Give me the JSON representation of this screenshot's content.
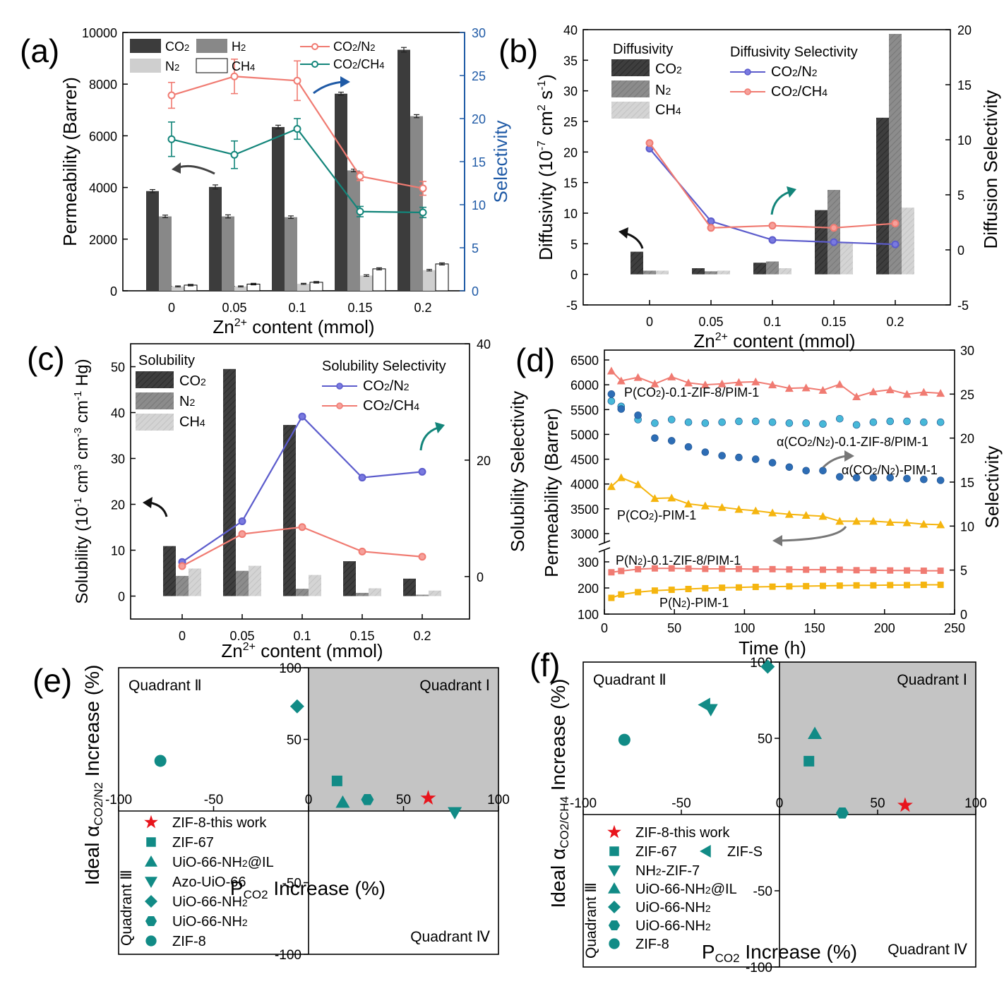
{
  "colors": {
    "co2_bar": "#3c3c3c",
    "h2_bar": "#888888",
    "n2_bar": "#cfcfcf",
    "ch4_bar": "#ffffff",
    "n2_bar_b": "#8a8a8a",
    "ch4_bar_b": "#d2d2d2",
    "salmon": "#f07b72",
    "teal": "#13857a",
    "blue_axis": "#1f5aa6",
    "purple": "#5c5ccc",
    "yellow": "#f5b50f",
    "light_blue": "#47b8d8",
    "dark_blue": "#2d6db5",
    "quad_fill": "#c4c4c4",
    "red_star": "#e8141c",
    "teal_marker": "#118b86"
  },
  "panels": {
    "a": {
      "letter": "(a)",
      "ylabel": "Permeability (Barrer)",
      "y2label": "Selectivity",
      "xlabel": "Zn$^{2+}$ content (mmol)",
      "xlabel_main": "Zn",
      "xlabel_sup": "2+",
      "xlabel_rest": " content (mmol)"
    },
    "b": {
      "letter": "(b)",
      "ylabel": "Diffusivity (10-7 cm2 s-1)",
      "y2label": "Diffusion Selectivity",
      "xlabel_main": "Zn",
      "xlabel_sup": "2+",
      "xlabel_rest": " content (mmol)",
      "legend_title_left": "Diffusivity",
      "legend_title_right": "Diffusivity Selectivity"
    },
    "c": {
      "letter": "(c)",
      "y2label": "Solubility Selectivity",
      "xlabel_main": "Zn",
      "xlabel_sup": "2+",
      "xlabel_rest": " content (mmol)",
      "legend_title_left": "Solubility",
      "legend_title_right": "Solubility Selectivity"
    },
    "d": {
      "letter": "(d)",
      "ylabel": "Permeability (Barrer)",
      "y2label": "Selectivity",
      "xlabel": "Time (h)"
    },
    "e": {
      "letter": "(e)",
      "xlabel": "PCO2 Increase (%)"
    },
    "f": {
      "letter": "(f)",
      "xlabel": "PCO2 Increase (%)"
    }
  },
  "chart_data": [
    {
      "panel": "a",
      "type": "bar",
      "categories": [
        "0",
        "0.05",
        "0.1",
        "0.15",
        "0.2"
      ],
      "ylim": [
        0,
        10000
      ],
      "y2lim": [
        0,
        30
      ],
      "yticks": [
        "0",
        "2000",
        "4000",
        "6000",
        "8000",
        "10000"
      ],
      "y2ticks": [
        "0",
        "5",
        "10",
        "15",
        "20",
        "25",
        "30"
      ],
      "series": [
        {
          "name": "CO2",
          "values": [
            3860,
            4020,
            6340,
            7630,
            9330
          ],
          "err": [
            60,
            80,
            70,
            60,
            90
          ]
        },
        {
          "name": "H2",
          "values": [
            2880,
            2880,
            2850,
            4660,
            6760
          ],
          "err": [
            50,
            60,
            50,
            50,
            60
          ]
        },
        {
          "name": "N2",
          "values": [
            170,
            170,
            270,
            590,
            800
          ],
          "err": [
            20,
            20,
            20,
            30,
            30
          ]
        },
        {
          "name": "CH4",
          "values": [
            220,
            260,
            330,
            850,
            1040
          ],
          "err": [
            30,
            30,
            30,
            40,
            40
          ]
        }
      ],
      "lines": [
        {
          "name": "CO2/N2",
          "values": [
            22.7,
            24.9,
            24.4,
            13.3,
            11.9
          ],
          "err": [
            1.5,
            2.0,
            2.3,
            0.5,
            0.8
          ]
        },
        {
          "name": "CO2/CH4",
          "values": [
            17.6,
            15.8,
            18.8,
            9.2,
            9.1
          ],
          "err": [
            2.0,
            1.6,
            1.2,
            0.6,
            0.6
          ]
        }
      ]
    },
    {
      "panel": "b",
      "type": "bar",
      "categories": [
        "0",
        "0.05",
        "0.1",
        "0.15",
        "0.2"
      ],
      "ylim": [
        -5,
        40
      ],
      "y2lim": [
        -5,
        20
      ],
      "yticks": [
        "-5",
        "0",
        "5",
        "10",
        "15",
        "20",
        "25",
        "30",
        "35",
        "40"
      ],
      "y2ticks": [
        "-5",
        "0",
        "5",
        "10",
        "15",
        "20"
      ],
      "series": [
        {
          "name": "CO2",
          "values": [
            3.7,
            1.0,
            1.9,
            10.5,
            25.6
          ]
        },
        {
          "name": "N2",
          "values": [
            0.6,
            0.5,
            2.1,
            13.8,
            39.3
          ]
        },
        {
          "name": "CH4",
          "values": [
            0.6,
            0.6,
            1.0,
            5.3,
            10.9
          ]
        }
      ],
      "lines": [
        {
          "name": "CO2/N2",
          "values": [
            9.2,
            2.6,
            0.9,
            0.7,
            0.5
          ]
        },
        {
          "name": "CO2/CH4",
          "values": [
            9.7,
            2.0,
            2.2,
            2.0,
            2.4
          ]
        }
      ]
    },
    {
      "panel": "c",
      "type": "bar",
      "categories": [
        "0",
        "0.05",
        "0.1",
        "0.15",
        "0.2"
      ],
      "ylim": [
        -5,
        55
      ],
      "y2lim": [
        -7.3,
        40
      ],
      "yticks": [
        "0",
        "10",
        "20",
        "30",
        "40",
        "50"
      ],
      "y2ticks": [
        "0",
        "20",
        "40"
      ],
      "series": [
        {
          "name": "CO2",
          "values": [
            10.9,
            49.5,
            37.3,
            7.6,
            3.8
          ]
        },
        {
          "name": "N2",
          "values": [
            4.4,
            5.5,
            1.6,
            0.7,
            0.3
          ]
        },
        {
          "name": "CH4",
          "values": [
            6.0,
            6.6,
            4.6,
            1.7,
            1.2
          ]
        }
      ],
      "lines": [
        {
          "name": "CO2/N2",
          "values": [
            2.5,
            9.5,
            27.5,
            17.0,
            18.0
          ]
        },
        {
          "name": "CO2/CH4",
          "values": [
            1.8,
            7.3,
            8.5,
            4.3,
            3.4
          ]
        }
      ]
    },
    {
      "panel": "d",
      "type": "line",
      "xlim": [
        0,
        250
      ],
      "xticks": [
        "0",
        "50",
        "100",
        "150",
        "200",
        "250"
      ],
      "yticks_top": [
        "3000",
        "3500",
        "4000",
        "4500",
        "5000",
        "5500",
        "6000",
        "6500"
      ],
      "yticks_bottom": [
        "100",
        "200",
        "300"
      ],
      "y2ticks": [
        "0",
        "5",
        "10",
        "15",
        "20",
        "25",
        "30"
      ],
      "series": [
        {
          "name": "P(CO2)-0.1-ZIF-8/PIM-1",
          "axis": "perm",
          "x": [
            5,
            12,
            24,
            36,
            48,
            60,
            72,
            84,
            96,
            108,
            120,
            132,
            144,
            156,
            168,
            180,
            192,
            204,
            216,
            228,
            240
          ],
          "y": [
            6280,
            6080,
            6150,
            6020,
            6160,
            6040,
            6000,
            6020,
            6050,
            6060,
            6000,
            5930,
            5940,
            5890,
            6010,
            5760,
            5860,
            5900,
            5810,
            5850,
            5830
          ]
        },
        {
          "name": "α(CO2/N2)-0.1-ZIF-8/PIM-1",
          "axis": "sel",
          "x": [
            5,
            12,
            24,
            36,
            48,
            60,
            72,
            84,
            96,
            108,
            120,
            132,
            144,
            156,
            168,
            180,
            192,
            204,
            216,
            228,
            240
          ],
          "y": [
            24.2,
            23.6,
            22.1,
            21.7,
            22.1,
            21.8,
            21.7,
            21.8,
            21.9,
            21.9,
            21.8,
            21.7,
            21.7,
            21.6,
            22.2,
            21.5,
            21.8,
            21.9,
            21.9,
            21.8,
            21.8
          ]
        },
        {
          "name": "α(CO2/N2)-PIM-1",
          "axis": "sel",
          "x": [
            5,
            12,
            24,
            36,
            48,
            60,
            72,
            84,
            96,
            108,
            120,
            132,
            144,
            156,
            168,
            180,
            192,
            204,
            216,
            228,
            240
          ],
          "y": [
            25.0,
            23.3,
            22.6,
            20.0,
            19.7,
            19.0,
            18.4,
            18.0,
            17.8,
            17.6,
            17.2,
            16.7,
            16.3,
            16.3,
            15.6,
            15.5,
            15.5,
            15.5,
            15.4,
            15.3,
            15.2
          ]
        },
        {
          "name": "P(CO2)-PIM-1",
          "axis": "perm",
          "x": [
            5,
            12,
            24,
            36,
            48,
            60,
            72,
            84,
            96,
            108,
            120,
            132,
            144,
            156,
            168,
            180,
            192,
            204,
            216,
            228,
            240
          ],
          "y": [
            3950,
            4130,
            3990,
            3710,
            3720,
            3600,
            3560,
            3530,
            3490,
            3460,
            3420,
            3390,
            3370,
            3350,
            3250,
            3250,
            3250,
            3230,
            3220,
            3190,
            3180
          ]
        },
        {
          "name": "P(N2)-0.1-ZIF-8/PIM-1",
          "axis": "perm",
          "x": [
            5,
            12,
            24,
            36,
            48,
            60,
            72,
            84,
            96,
            108,
            120,
            132,
            144,
            156,
            168,
            180,
            192,
            204,
            216,
            228,
            240
          ],
          "y": [
            260,
            265,
            272,
            275,
            275,
            274,
            273,
            273,
            273,
            272,
            272,
            271,
            270,
            270,
            270,
            268,
            268,
            267,
            267,
            266,
            266
          ]
        },
        {
          "name": "P(N2)-PIM-1",
          "axis": "perm",
          "x": [
            5,
            12,
            24,
            36,
            48,
            60,
            72,
            84,
            96,
            108,
            120,
            132,
            144,
            156,
            168,
            180,
            192,
            204,
            216,
            228,
            240
          ],
          "y": [
            162,
            175,
            184,
            190,
            193,
            196,
            199,
            201,
            202,
            204,
            205,
            206,
            207,
            208,
            209,
            210,
            210,
            211,
            211,
            212,
            212
          ]
        }
      ]
    },
    {
      "panel": "e",
      "type": "scatter",
      "xlim": [
        -100,
        100
      ],
      "ylim": [
        -100,
        100
      ],
      "xticks": [
        "-100",
        "-50",
        "0",
        "50",
        "100"
      ],
      "yticks": [
        "100",
        "50",
        "0",
        "-50",
        "-100"
      ],
      "quadrants": {
        "q1": "Quadrant Ⅰ",
        "q2": "Quadrant Ⅱ",
        "q3": "Quadrant Ⅲ",
        "q4": "Quadrant Ⅳ"
      },
      "points": [
        {
          "name": "ZIF-8-this work",
          "marker": "star",
          "x": 63,
          "y": 9
        },
        {
          "name": "ZIF-67",
          "marker": "square",
          "x": 15,
          "y": 21
        },
        {
          "name": "UiO-66-NH2@IL",
          "marker": "tri-up",
          "x": 18,
          "y": 6
        },
        {
          "name": "Azo-UiO-66",
          "marker": "tri-down",
          "x": 77,
          "y": -1
        },
        {
          "name": "UiO-66-NH2",
          "marker": "diamond",
          "x": -6,
          "y": 73
        },
        {
          "name": "UiO-66-NH2",
          "marker": "hexagon",
          "x": 31,
          "y": 8
        },
        {
          "name": "ZIF-8",
          "marker": "circle",
          "x": -78,
          "y": 35
        }
      ]
    },
    {
      "panel": "f",
      "type": "scatter",
      "xlim": [
        -100,
        100
      ],
      "ylim": [
        -100,
        100
      ],
      "xticks": [
        "-100",
        "-50",
        "0",
        "50",
        "100"
      ],
      "yticks": [
        "100",
        "50",
        "0",
        "-50",
        "-100"
      ],
      "quadrants": {
        "q1": "Quadrant Ⅰ",
        "q2": "Quadrant Ⅱ",
        "q3": "Quadrant Ⅲ",
        "q4": "Quadrant Ⅳ"
      },
      "points": [
        {
          "name": "ZIF-8-this work",
          "marker": "star",
          "x": 64,
          "y": 6
        },
        {
          "name": "ZIF-67",
          "marker": "square",
          "x": 15,
          "y": 35
        },
        {
          "name": "ZIF-S",
          "marker": "tri-left",
          "x": -38,
          "y": 72
        },
        {
          "name": "NH2-ZIF-7",
          "marker": "tri-down",
          "x": -35,
          "y": 69
        },
        {
          "name": "UiO-66-NH2@IL",
          "marker": "tri-up",
          "x": 18,
          "y": 53
        },
        {
          "name": "UiO-66-NH2",
          "marker": "diamond",
          "x": -6,
          "y": 97
        },
        {
          "name": "UiO-66-NH2",
          "marker": "hexagon",
          "x": 32,
          "y": 1
        },
        {
          "name": "ZIF-8",
          "marker": "circle",
          "x": -79,
          "y": 49
        }
      ]
    }
  ]
}
